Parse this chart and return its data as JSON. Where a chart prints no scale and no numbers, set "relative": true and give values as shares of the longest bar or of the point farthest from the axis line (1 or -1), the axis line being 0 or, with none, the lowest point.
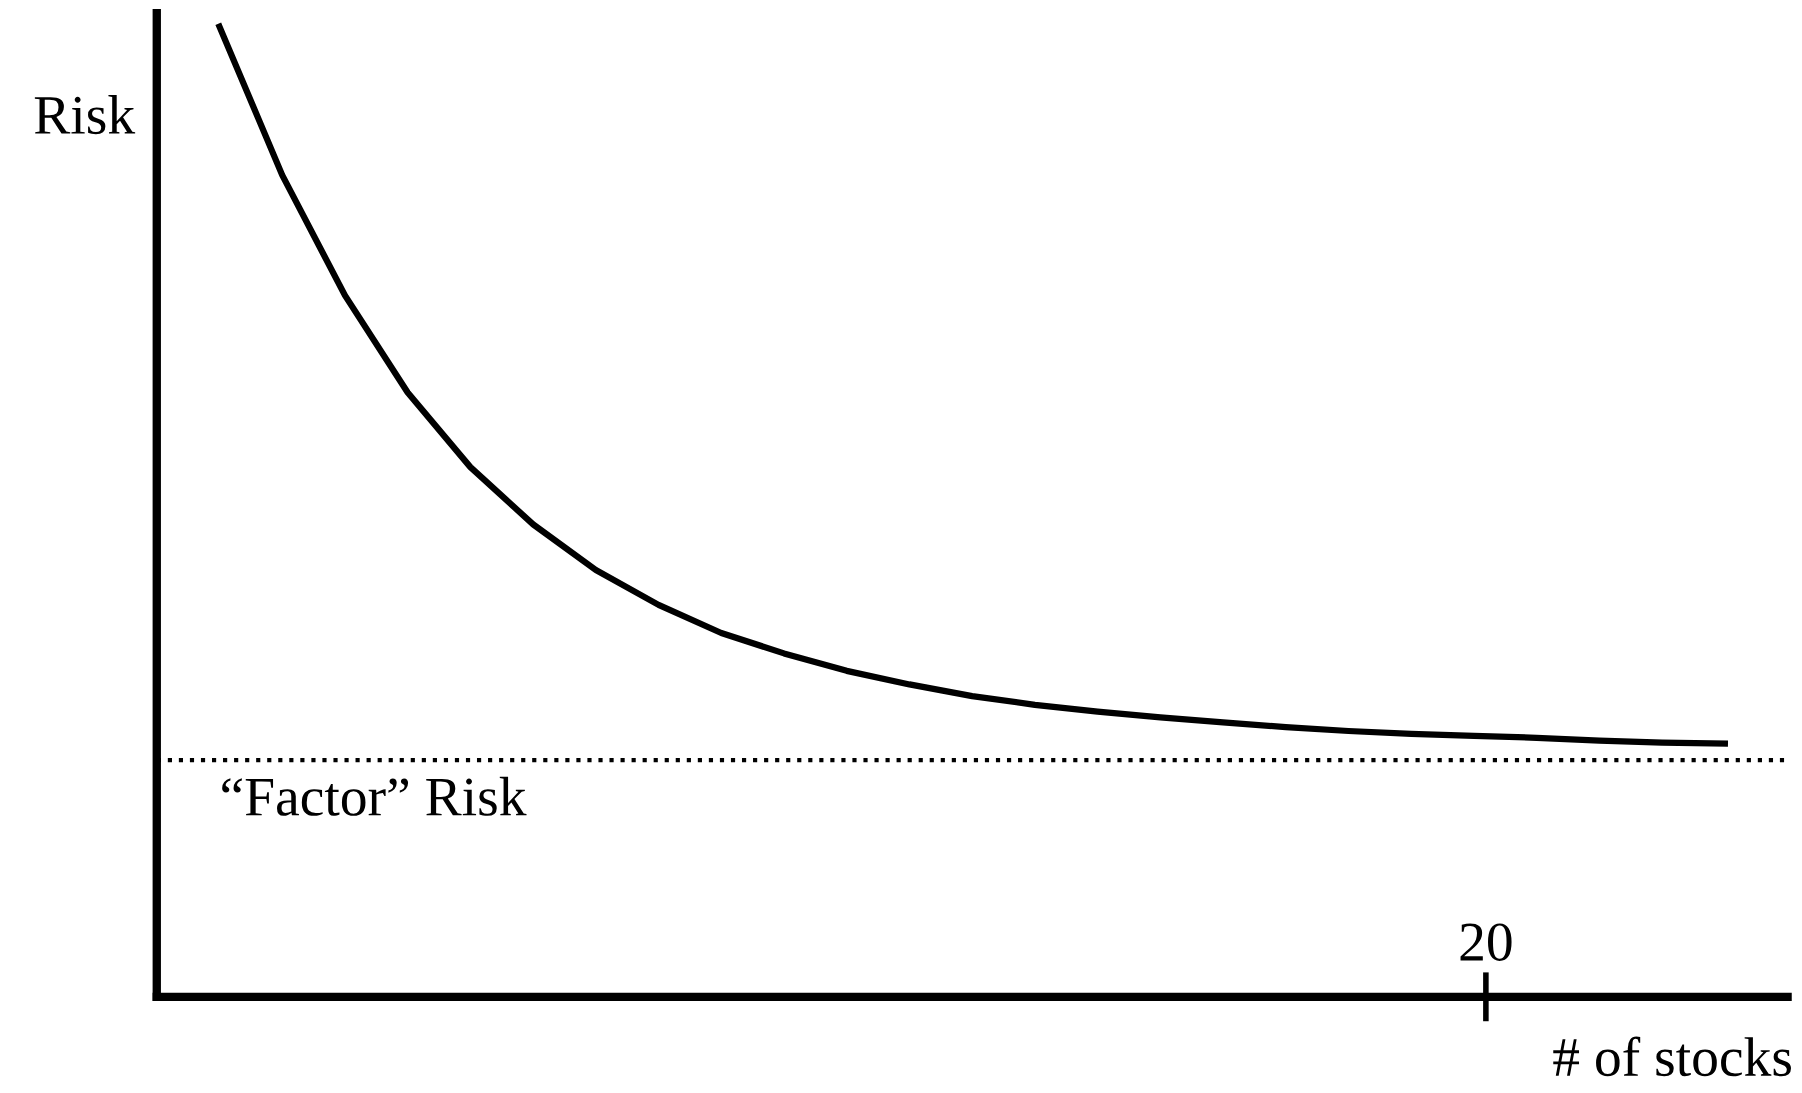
{
  "chart_data": {
    "type": "line",
    "relative": true,
    "ylabel": "Risk",
    "xlabel": "# of stocks",
    "categories": [
      null,
      null,
      null,
      null,
      null,
      null,
      null,
      null,
      null,
      null,
      null,
      null,
      null,
      null,
      null,
      null,
      null,
      null,
      null,
      null,
      null,
      null,
      null,
      null,
      null
    ],
    "annotations": [
      "20"
    ],
    "series": [
      {
        "color": "#000000",
        "values": [
          1.0,
          0.847,
          0.723,
          0.623,
          0.546,
          0.487,
          0.44,
          0.404,
          0.375,
          0.354,
          0.336,
          0.322,
          0.31,
          0.301,
          0.294,
          0.288,
          0.283,
          0.278,
          0.274,
          0.271,
          0.269,
          0.267,
          0.264,
          0.262,
          0.261
        ]
      }
    ],
    "ref_lines": [
      {
        "axis": "y",
        "value": 0.244,
        "label": "“Factor” Risk",
        "color": "#000000",
        "line_style": "dotted"
      }
    ],
    "marker": "none",
    "line_style": "solid"
  }
}
